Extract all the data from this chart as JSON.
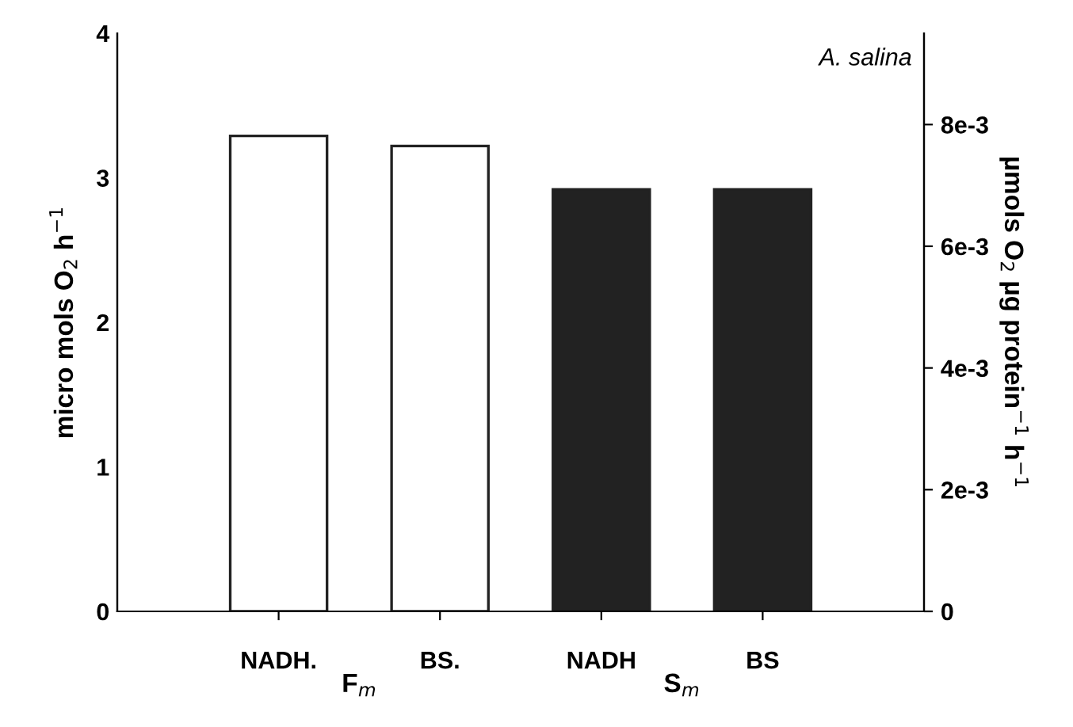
{
  "chart_data": {
    "type": "bar",
    "categories": [
      "NADH.",
      "BS.",
      "NADH",
      "BS"
    ],
    "values": [
      3.29,
      3.22,
      2.92,
      2.92
    ],
    "colors": [
      "#ffffff",
      "#ffffff",
      "#222222",
      "#222222"
    ],
    "ylabel": "micro mols O$_{2}$ h$^{−1}$",
    "y2label": "µmols O$_{2}$ µg protein$^{−1}$ h$^{−1}$",
    "ylim": [
      0,
      4
    ],
    "yticks": [
      0,
      1,
      2,
      3,
      4
    ],
    "y2lim": [
      0,
      0.0095
    ],
    "y2ticks": [
      0,
      {
        "value": 0.002,
        "label": "2e-3"
      },
      {
        "value": 0.004,
        "label": "4e-3"
      },
      {
        "value": 0.006,
        "label": "6e-3"
      },
      {
        "value": 0.008,
        "label": "8e-3"
      }
    ],
    "annotations": [
      "A. salina",
      "F$_{m}$",
      "S$_{m}$"
    ],
    "grid": false,
    "legend": false
  }
}
